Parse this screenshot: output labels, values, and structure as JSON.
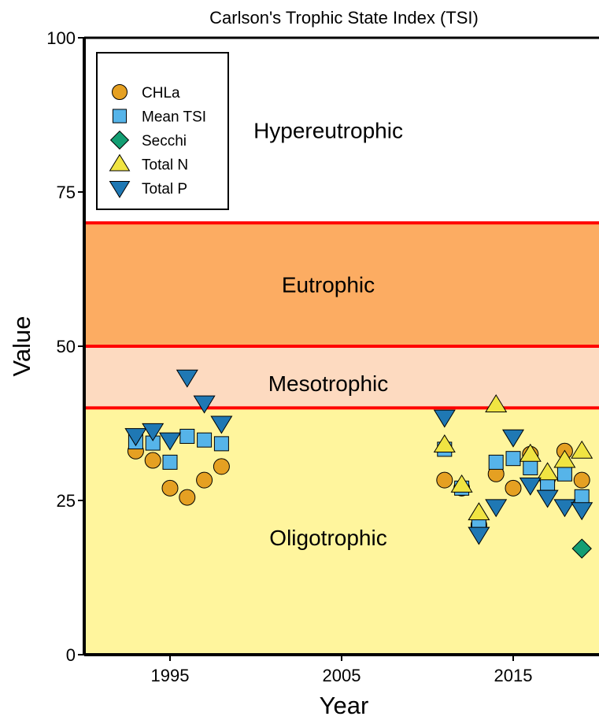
{
  "chart_data": {
    "type": "scatter",
    "title": "",
    "subtitle": "Carlson's Trophic State Index (TSI)",
    "xlabel": "Year",
    "ylabel": "Value",
    "xlim": [
      1990,
      2020
    ],
    "ylim": [
      0,
      100
    ],
    "x_ticks": [
      1995,
      2005,
      2015
    ],
    "y_ticks": [
      0,
      25,
      50,
      75,
      100
    ],
    "grid": false,
    "legend_position": "top-left",
    "zones": [
      {
        "label": "Oligotrophic",
        "from": 0,
        "to": 40,
        "color": "#fff59d"
      },
      {
        "label": "Mesotrophic",
        "from": 40,
        "to": 50,
        "color": "#fddac0"
      },
      {
        "label": "Eutrophic",
        "from": 50,
        "to": 70,
        "color": "#fcac62"
      },
      {
        "label": "Hypereutrophic",
        "from": 70,
        "to": 100,
        "color": "#ffffff"
      }
    ],
    "zone_boundaries": [
      40,
      50,
      70
    ],
    "boundary_color": "#ff0000",
    "series": [
      {
        "name": "CHLa",
        "marker": "circle",
        "color": "#e5a022",
        "points": [
          [
            1993,
            33
          ],
          [
            1994,
            31.5
          ],
          [
            1995,
            27
          ],
          [
            1996,
            25.5
          ],
          [
            1997,
            28.3
          ],
          [
            1998,
            30.5
          ],
          [
            2011,
            28.3
          ],
          [
            2012,
            27
          ],
          [
            2013,
            21
          ],
          [
            2014,
            29.3
          ],
          [
            2015,
            27
          ],
          [
            2016,
            32.5
          ],
          [
            2017,
            28.5
          ],
          [
            2018,
            33
          ],
          [
            2019,
            28.3
          ]
        ]
      },
      {
        "name": "Mean TSI",
        "marker": "square",
        "color": "#56b4e9",
        "points": [
          [
            1993,
            34.5
          ],
          [
            1994,
            34.3
          ],
          [
            1995,
            31.2
          ],
          [
            1996,
            35.4
          ],
          [
            1997,
            34.8
          ],
          [
            1998,
            34.2
          ],
          [
            2011,
            33.3
          ],
          [
            2012,
            27
          ],
          [
            2013,
            21.3
          ],
          [
            2014,
            31.2
          ],
          [
            2015,
            31.8
          ],
          [
            2016,
            30.3
          ],
          [
            2017,
            27.8
          ],
          [
            2018,
            29.3
          ],
          [
            2019,
            25.6
          ]
        ]
      },
      {
        "name": "Secchi",
        "marker": "diamond",
        "color": "#139e73",
        "points": [
          [
            2019,
            17.2
          ]
        ]
      },
      {
        "name": "Total N",
        "marker": "triangle-up",
        "color": "#f0e442",
        "points": [
          [
            2011,
            34
          ],
          [
            2012,
            27.5
          ],
          [
            2013,
            23
          ],
          [
            2014,
            40.5
          ],
          [
            2016,
            32.5
          ],
          [
            2017,
            29.5
          ],
          [
            2018,
            31.5
          ],
          [
            2019,
            33
          ]
        ]
      },
      {
        "name": "Total P",
        "marker": "triangle-down",
        "color": "#1f78b4",
        "points": [
          [
            1993,
            35.5
          ],
          [
            1994,
            36.3
          ],
          [
            1995,
            34.8
          ],
          [
            1996,
            45
          ],
          [
            1997,
            40.8
          ],
          [
            1998,
            37.5
          ],
          [
            2011,
            38.5
          ],
          [
            2013,
            19.5
          ],
          [
            2014,
            24
          ],
          [
            2015,
            35.3
          ],
          [
            2016,
            27.5
          ],
          [
            2017,
            25.5
          ],
          [
            2018,
            24
          ],
          [
            2019,
            23.5
          ]
        ]
      }
    ]
  }
}
